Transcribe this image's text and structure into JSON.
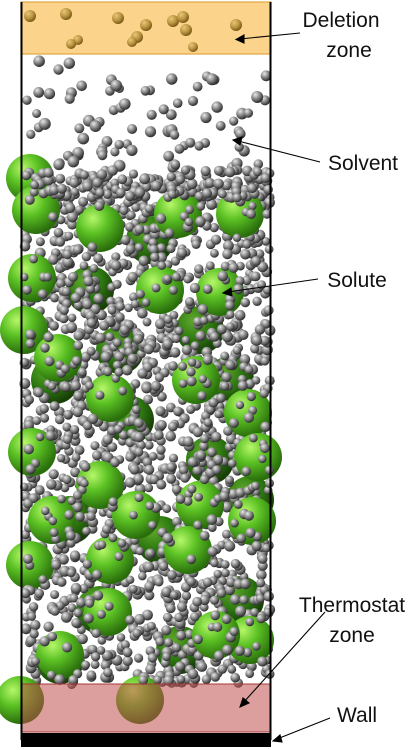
{
  "figure": {
    "description_labels": {
      "deletion_zone": {
        "line1": "Deletion",
        "line2": "zone"
      },
      "solvent": "Solvent",
      "solute": "Solute",
      "thermostat_zone": {
        "line1": "Thermostat",
        "line2": "zone"
      },
      "wall": "Wall"
    },
    "colors": {
      "deletion_zone_fill": "#fbd38a",
      "thermostat_zone_fill": "#c0504d",
      "wall_fill": "#000000",
      "solute_light": "#8fe04a",
      "solute_mid": "#4fb51f",
      "solute_dark": "#2a6e0c",
      "solvent_light": "#d9d9d9",
      "solvent_dark": "#3c3c3c",
      "box_outline": "#000000"
    }
  }
}
